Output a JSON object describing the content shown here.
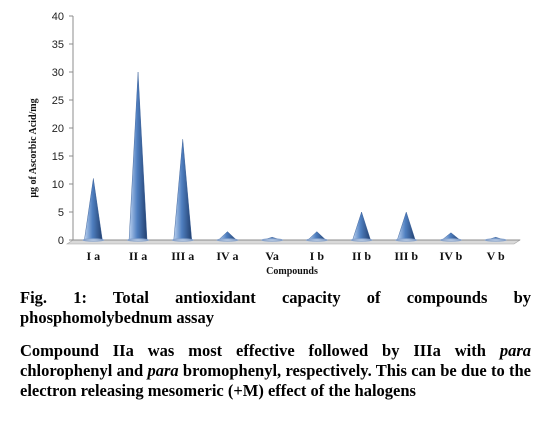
{
  "chart_data": {
    "type": "bar",
    "mark": "cone",
    "categories": [
      "I a",
      "II a",
      "III a",
      "IV a",
      "Va",
      "I b",
      "II b",
      "III b",
      "IV b",
      "V b"
    ],
    "values": [
      11,
      30,
      18,
      1.5,
      0.5,
      1.5,
      5,
      5,
      1.3,
      0.5
    ],
    "xlabel": "Compounds",
    "ylabel": "μg of Ascorbic Acid/mg",
    "ylim": [
      0,
      40
    ],
    "yticks": [
      0,
      5,
      10,
      15,
      20,
      25,
      30,
      35,
      40
    ],
    "grid": false,
    "legend": "none",
    "color": "#4f7fc0"
  },
  "caption": {
    "figure": "Fig. 1: Total antioxidant capacity of compounds by phosphomolybednum assay",
    "note_parts": [
      {
        "text": "Compound IIa was most effective followed by IIIa with ",
        "italic": false
      },
      {
        "text": "para",
        "italic": true
      },
      {
        "text": " chlorophenyl and ",
        "italic": false
      },
      {
        "text": "para",
        "italic": true
      },
      {
        "text": " bromophenyl, respectively. This can be due to the electron releasing mesomeric (+M) effect of the halogens",
        "italic": false
      }
    ]
  }
}
